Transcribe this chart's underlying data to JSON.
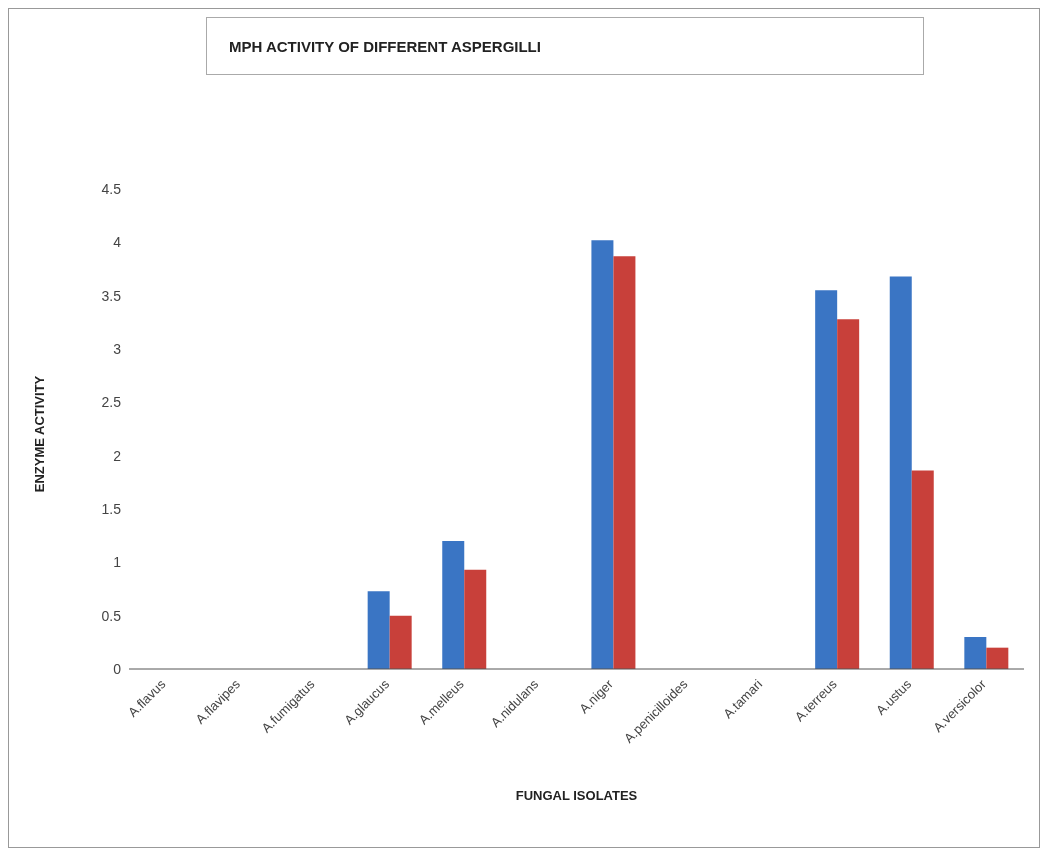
{
  "chart_data": {
    "type": "bar",
    "title": "MPH ACTIVITY OF DIFFERENT ASPERGILLI",
    "xlabel": "FUNGAL ISOLATES",
    "ylabel": "ENZYME ACTIVITY",
    "categories": [
      "A.flavus",
      "A.flavipes",
      "A.fumigatus",
      "A.glaucus",
      "A.melleus",
      "A.nidulans",
      "A.niger",
      "A.penicilloides",
      "A.tamari",
      "A.terreus",
      "A.ustus",
      "A.versicolor"
    ],
    "series": [
      {
        "color": "#3a75c4",
        "values": [
          0,
          0,
          0,
          0.73,
          1.2,
          0,
          4.02,
          0,
          0,
          3.55,
          3.68,
          0.3
        ]
      },
      {
        "color": "#c8403a",
        "values": [
          0,
          0,
          0,
          0.5,
          0.93,
          0,
          3.87,
          0,
          0,
          3.28,
          1.86,
          0.2
        ]
      }
    ],
    "ylim": [
      0,
      4.5
    ],
    "yticks": [
      0,
      0.5,
      1,
      1.5,
      2,
      2.5,
      3,
      3.5,
      4,
      4.5
    ]
  }
}
